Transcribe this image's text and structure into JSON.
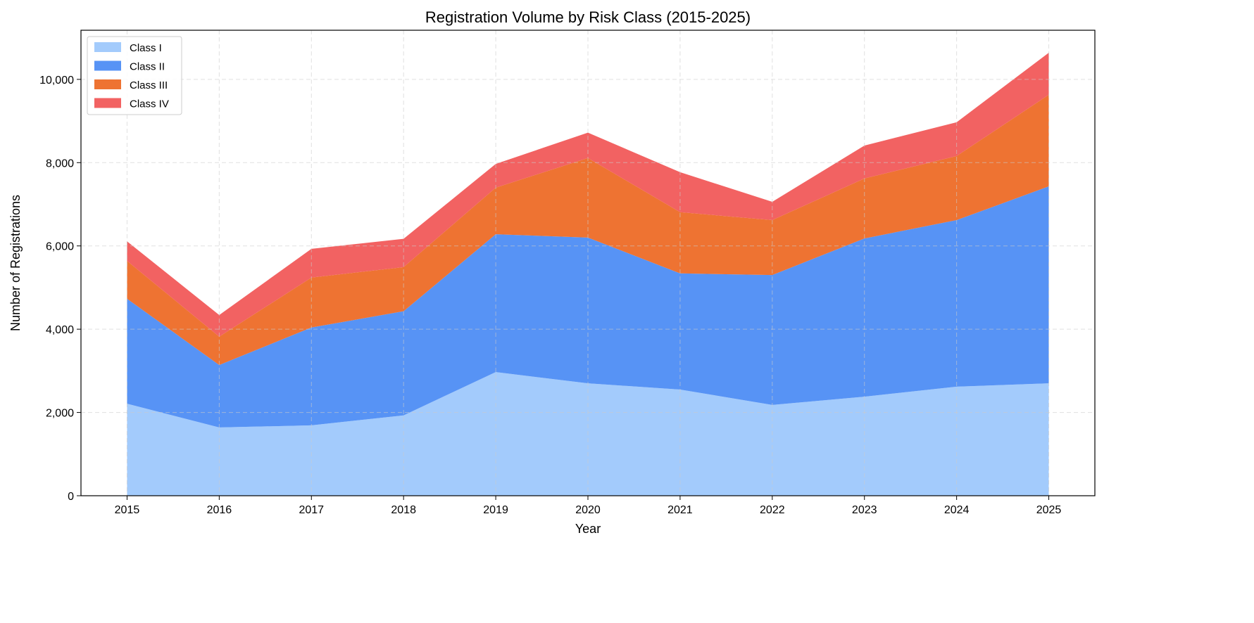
{
  "chart_data": {
    "type": "area",
    "stacked": true,
    "title": "Registration Volume by Risk Class (2015-2025)",
    "xlabel": "Year",
    "ylabel": "Number of Registrations",
    "x": [
      2015,
      2016,
      2017,
      2018,
      2019,
      2020,
      2021,
      2022,
      2023,
      2024,
      2025
    ],
    "xlim": [
      2014.5,
      2025.5
    ],
    "ylim": [
      0,
      11180
    ],
    "yticks": [
      0,
      2000,
      4000,
      6000,
      8000,
      10000
    ],
    "ytick_labels": [
      "0",
      "2,000",
      "4,000",
      "6,000",
      "8,000",
      "10,000"
    ],
    "grid": true,
    "legend_position": "top-left",
    "series": [
      {
        "name": "Class I",
        "color": "#a3cbfc",
        "values": [
          2210,
          1640,
          1690,
          1930,
          2970,
          2700,
          2550,
          2180,
          2380,
          2620,
          2700
        ]
      },
      {
        "name": "Class II",
        "color": "#5793f5",
        "values": [
          2520,
          1500,
          2350,
          2500,
          3310,
          3500,
          2790,
          3120,
          3800,
          4000,
          4730
        ]
      },
      {
        "name": "Class III",
        "color": "#ee7332",
        "values": [
          910,
          680,
          1200,
          1060,
          1120,
          1910,
          1470,
          1320,
          1440,
          1540,
          2200
        ]
      },
      {
        "name": "Class IV",
        "color": "#f26262",
        "values": [
          470,
          520,
          690,
          680,
          570,
          610,
          960,
          440,
          790,
          810,
          1010
        ]
      }
    ]
  }
}
